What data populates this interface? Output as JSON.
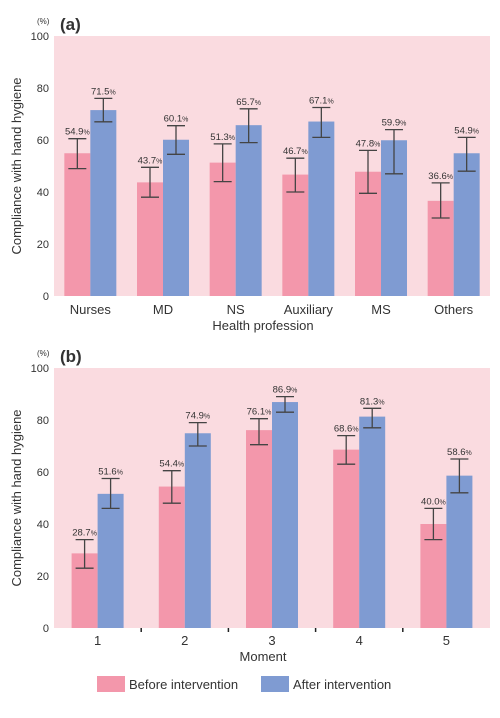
{
  "colors": {
    "before": "#f397ab",
    "after": "#7f9bd2",
    "panel_background": "#fadbe0",
    "error_bar": "#444444",
    "text": "#333333"
  },
  "legend": {
    "before_label": "Before intervention",
    "after_label": "After intervention"
  },
  "chart_data": [
    {
      "type": "bar",
      "panel_label": "(a)",
      "unit_label": "(%)",
      "ylabel": "Compliance with hand hygiene",
      "xlabel": "Health profession",
      "ylim": [
        0,
        100
      ],
      "yticks": [
        0,
        20,
        40,
        60,
        80,
        100
      ],
      "grid": false,
      "legend_position": "bottom",
      "categories": [
        "Nurses",
        "MD",
        "NS",
        "Auxiliary",
        "MS",
        "Others"
      ],
      "series": [
        {
          "name": "Before intervention",
          "values": [
            54.9,
            43.7,
            51.3,
            46.7,
            47.8,
            36.6
          ],
          "value_labels": [
            "54.9%",
            "43.7%",
            "51.3%",
            "46.7%",
            "47.8%",
            "36.6%"
          ],
          "ci_low": [
            49,
            38,
            44,
            40,
            39.5,
            30
          ],
          "ci_high": [
            60.5,
            49.5,
            58.5,
            53,
            56,
            43.5
          ]
        },
        {
          "name": "After intervention",
          "values": [
            71.5,
            60.1,
            65.7,
            67.1,
            59.9,
            54.9
          ],
          "value_labels": [
            "71.5%",
            "60.1%",
            "65.7%",
            "67.1%",
            "59.9%",
            "54.9%"
          ],
          "ci_low": [
            67,
            54.5,
            59,
            61,
            47,
            48
          ],
          "ci_high": [
            76,
            65.5,
            72,
            72.5,
            64,
            61
          ]
        }
      ]
    },
    {
      "type": "bar",
      "panel_label": "(b)",
      "unit_label": "(%)",
      "ylabel": "Compliance with hand hygiene",
      "xlabel": "Moment",
      "ylim": [
        0,
        100
      ],
      "yticks": [
        0,
        20,
        40,
        60,
        80,
        100
      ],
      "grid": false,
      "legend_position": "bottom",
      "categories": [
        "1",
        "2",
        "3",
        "4",
        "5"
      ],
      "series": [
        {
          "name": "Before intervention",
          "values": [
            28.7,
            54.4,
            76.1,
            68.6,
            40.0
          ],
          "value_labels": [
            "28.7%",
            "54.4%",
            "76.1%",
            "68.6%",
            "40.0%"
          ],
          "ci_low": [
            23,
            48,
            70.5,
            63,
            34
          ],
          "ci_high": [
            34,
            60.5,
            80.5,
            74,
            46
          ]
        },
        {
          "name": "After intervention",
          "values": [
            51.6,
            74.9,
            86.9,
            81.3,
            58.6
          ],
          "value_labels": [
            "51.6%",
            "74.9%",
            "86.9%",
            "81.3%",
            "58.6%"
          ],
          "ci_low": [
            46,
            70,
            83,
            77,
            52
          ],
          "ci_high": [
            57.5,
            79,
            89,
            84.5,
            65
          ]
        }
      ]
    }
  ]
}
